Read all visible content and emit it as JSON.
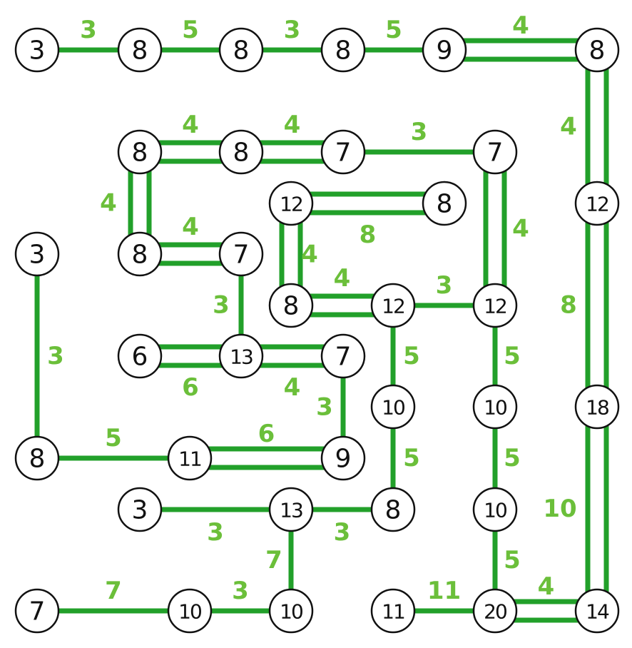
{
  "colors": {
    "edge": "#22a02a",
    "label": "#6bbf3a",
    "node_fill": "#ffffff",
    "node_stroke": "#111111"
  },
  "nodes": [
    {
      "id": "a1",
      "value": "3"
    },
    {
      "id": "a2",
      "value": "8"
    },
    {
      "id": "a3",
      "value": "8"
    },
    {
      "id": "a4",
      "value": "8"
    },
    {
      "id": "a5",
      "value": "9"
    },
    {
      "id": "a6",
      "value": "8"
    },
    {
      "id": "b1",
      "value": "8"
    },
    {
      "id": "b2",
      "value": "8"
    },
    {
      "id": "b3",
      "value": "7"
    },
    {
      "id": "b4",
      "value": "7"
    },
    {
      "id": "c1",
      "value": "12"
    },
    {
      "id": "c2",
      "value": "8"
    },
    {
      "id": "c3",
      "value": "12"
    },
    {
      "id": "d1",
      "value": "3"
    },
    {
      "id": "d2",
      "value": "8"
    },
    {
      "id": "d3",
      "value": "7"
    },
    {
      "id": "e1",
      "value": "8"
    },
    {
      "id": "e2",
      "value": "12"
    },
    {
      "id": "e3",
      "value": "12"
    },
    {
      "id": "f1",
      "value": "6"
    },
    {
      "id": "f2",
      "value": "13"
    },
    {
      "id": "f3",
      "value": "7"
    },
    {
      "id": "g1",
      "value": "10"
    },
    {
      "id": "g2",
      "value": "10"
    },
    {
      "id": "g3",
      "value": "18"
    },
    {
      "id": "h1",
      "value": "8"
    },
    {
      "id": "h2",
      "value": "11"
    },
    {
      "id": "h3",
      "value": "9"
    },
    {
      "id": "i1",
      "value": "3"
    },
    {
      "id": "i2",
      "value": "13"
    },
    {
      "id": "i3",
      "value": "8"
    },
    {
      "id": "i4",
      "value": "10"
    },
    {
      "id": "j1",
      "value": "7"
    },
    {
      "id": "j2",
      "value": "10"
    },
    {
      "id": "j3",
      "value": "10"
    },
    {
      "id": "j4",
      "value": "11"
    },
    {
      "id": "j5",
      "value": "20"
    },
    {
      "id": "j6",
      "value": "14"
    }
  ],
  "bridges": [
    {
      "from": "a1",
      "to": "a2",
      "count": 1,
      "label": "3"
    },
    {
      "from": "a2",
      "to": "a3",
      "count": 1,
      "label": "5"
    },
    {
      "from": "a3",
      "to": "a4",
      "count": 1,
      "label": "3"
    },
    {
      "from": "a4",
      "to": "a5",
      "count": 1,
      "label": "5"
    },
    {
      "from": "a5",
      "to": "a6",
      "count": 2,
      "label": "4"
    },
    {
      "from": "a6",
      "to": "c3",
      "count": 2,
      "label": "4"
    },
    {
      "from": "c3",
      "to": "g3",
      "count": 2,
      "label": "8"
    },
    {
      "from": "g3",
      "to": "j6",
      "count": 2,
      "label": "10"
    },
    {
      "from": "j5",
      "to": "j6",
      "count": 2,
      "label": "4"
    },
    {
      "from": "b1",
      "to": "b2",
      "count": 2,
      "label": "4"
    },
    {
      "from": "b2",
      "to": "b3",
      "count": 2,
      "label": "4"
    },
    {
      "from": "b3",
      "to": "b4",
      "count": 1,
      "label": "3"
    },
    {
      "from": "b1",
      "to": "d2",
      "count": 2,
      "label": "4"
    },
    {
      "from": "d2",
      "to": "d3",
      "count": 2,
      "label": "4"
    },
    {
      "from": "d3",
      "to": "f2",
      "count": 1,
      "label": "3"
    },
    {
      "from": "c1",
      "to": "c2",
      "count": 2,
      "label": "8"
    },
    {
      "from": "c1",
      "to": "e1",
      "count": 2,
      "label": "4"
    },
    {
      "from": "e1",
      "to": "e2",
      "count": 2,
      "label": "4"
    },
    {
      "from": "e2",
      "to": "e3",
      "count": 1,
      "label": "3"
    },
    {
      "from": "b4",
      "to": "e3",
      "count": 2,
      "label": "4"
    },
    {
      "from": "e2",
      "to": "g1",
      "count": 1,
      "label": "5"
    },
    {
      "from": "g1",
      "to": "i3",
      "count": 1,
      "label": "5"
    },
    {
      "from": "e3",
      "to": "g2",
      "count": 1,
      "label": "5"
    },
    {
      "from": "g2",
      "to": "i4",
      "count": 1,
      "label": "5"
    },
    {
      "from": "i4",
      "to": "j5",
      "count": 1,
      "label": "5"
    },
    {
      "from": "f1",
      "to": "f2",
      "count": 2,
      "label": "6"
    },
    {
      "from": "f2",
      "to": "f3",
      "count": 2,
      "label": "4"
    },
    {
      "from": "f3",
      "to": "h3",
      "count": 1,
      "label": "3"
    },
    {
      "from": "d1",
      "to": "h1",
      "count": 1,
      "label": "3"
    },
    {
      "from": "h1",
      "to": "h2",
      "count": 1,
      "label": "5"
    },
    {
      "from": "h2",
      "to": "h3",
      "count": 2,
      "label": "6"
    },
    {
      "from": "i1",
      "to": "i2",
      "count": 1,
      "label": "3"
    },
    {
      "from": "i2",
      "to": "i3",
      "count": 1,
      "label": "3"
    },
    {
      "from": "i2",
      "to": "j3",
      "count": 1,
      "label": "7"
    },
    {
      "from": "j1",
      "to": "j2",
      "count": 1,
      "label": "7"
    },
    {
      "from": "j2",
      "to": "j3",
      "count": 1,
      "label": "3"
    },
    {
      "from": "j4",
      "to": "j5",
      "count": 1,
      "label": "11"
    }
  ]
}
